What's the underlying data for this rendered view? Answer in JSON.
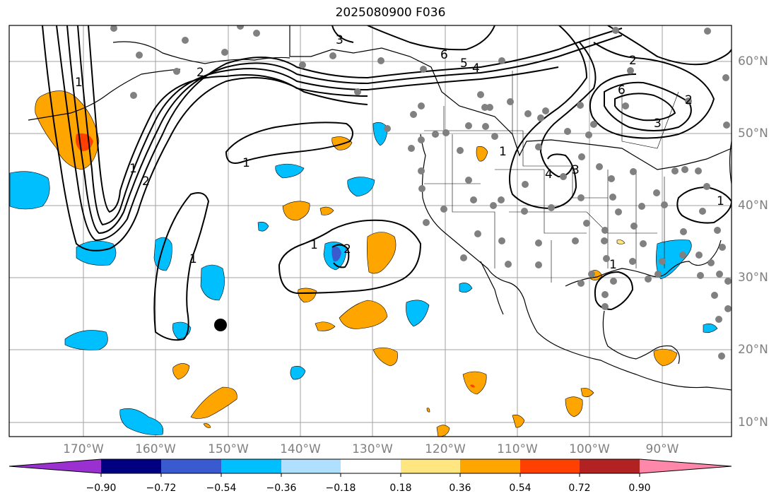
{
  "title": "2025080900 F036",
  "map": {
    "lon_ticks": [
      "170°W",
      "160°W",
      "150°W",
      "140°W",
      "130°W",
      "120°W",
      "110°W",
      "100°W",
      "90°W"
    ],
    "lat_ticks": [
      "60°N",
      "50°N",
      "40°N",
      "30°N",
      "20°N",
      "10°N"
    ],
    "contour_labels": [
      "3",
      "6",
      "5",
      "4",
      "2",
      "1",
      "1",
      "2",
      "1",
      "1",
      "1",
      "2",
      "1",
      "1",
      "3",
      "4",
      "2",
      "6",
      "2",
      "1",
      "3"
    ],
    "colors": {
      "contour": "#000000",
      "grid": "#a0a0a0",
      "station": "#808080",
      "marker": "#000000",
      "coast": "#000000"
    }
  },
  "colorbar": {
    "tick_labels": [
      "−0.90",
      "−0.72",
      "−0.54",
      "−0.36",
      "−0.18",
      "0.18",
      "0.36",
      "0.54",
      "0.72",
      "0.90"
    ],
    "colors": [
      "#9b30d0",
      "#000080",
      "#3a5bd0",
      "#00bfff",
      "#b0e0ff",
      "#ffffff",
      "#ffe680",
      "#ffa500",
      "#ff4000",
      "#b22222",
      "#ff88aa"
    ]
  }
}
